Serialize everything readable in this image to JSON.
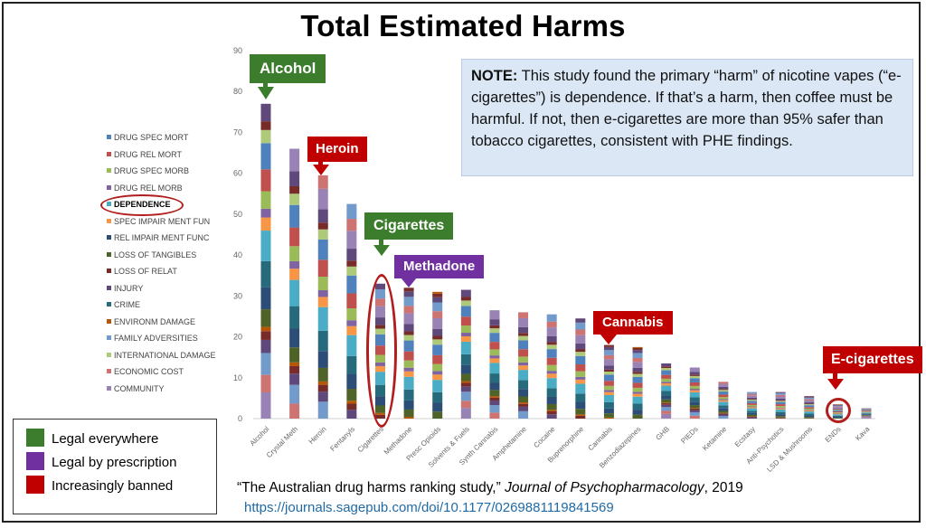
{
  "title": "Total Estimated Harms",
  "note": {
    "label": "NOTE:",
    "text": "This study found the primary “harm” of nicotine vapes (“e-cigarettes”) is dependence.  If that’s a harm, then coffee must be harmful.  If not, then e-cigarettes are more than 95% safer than tobacco cigarettes, consistent with PHE findings."
  },
  "citation": {
    "prefix": "“The Australian drug harms ranking study,” ",
    "journal": "Journal of Psychopharmacology",
    "suffix": ", 2019",
    "link": "https://journals.sagepub.com/doi/10.1177/0269881119841569"
  },
  "status_legend": [
    {
      "label": "Legal everywhere",
      "color": "#3b7d2c"
    },
    {
      "label": "Legal by prescription",
      "color": "#7030a0"
    },
    {
      "label": "Increasingly banned",
      "color": "#c00000"
    }
  ],
  "callouts": [
    {
      "label": "Alcohol",
      "color": "#3b7d2c"
    },
    {
      "label": "Heroin",
      "color": "#c00000"
    },
    {
      "label": "Cigarettes",
      "color": "#3b7d2c"
    },
    {
      "label": "Methadone",
      "color": "#7030a0"
    },
    {
      "label": "Cannabis",
      "color": "#c00000"
    },
    {
      "label": "E-cigarettes",
      "color": "#c00000"
    }
  ],
  "highlighted_legend_entry": "DEPENDENCE",
  "chart_data": {
    "type": "bar",
    "stacked": true,
    "ylim": [
      0,
      90
    ],
    "yticks": [
      0,
      10,
      20,
      30,
      40,
      50,
      60,
      70,
      80,
      90
    ],
    "grid": false,
    "legend_position": "left",
    "categories": [
      "Alcohol",
      "Crystal Meth",
      "Heroin",
      "Fentanyls",
      "Cigarettes",
      "Methadone",
      "Presc Opioids",
      "Solvents & Fuels",
      "Synth Cannabis",
      "Amphetamine",
      "Cocaine",
      "Buprenorphine",
      "Cannabis",
      "Benzodiazepines",
      "GHB",
      "PIEDs",
      "Ketamine",
      "Ecstasy",
      "Anti-Psychotics",
      "LSD & Mushrooms",
      "ENDs",
      "Kava"
    ],
    "totals": [
      77,
      66,
      59.5,
      52.5,
      33,
      32,
      31,
      31.5,
      26.5,
      26,
      25.5,
      24.5,
      18,
      17.5,
      13.5,
      12.5,
      9,
      6.5,
      6.5,
      5.5,
      3.5,
      2.5
    ],
    "series": [
      {
        "name": "DRUG SPEC MORT",
        "color": "#4f81bd"
      },
      {
        "name": "DRUG REL MORT",
        "color": "#c0504d"
      },
      {
        "name": "DRUG SPEC MORB",
        "color": "#9bbb59"
      },
      {
        "name": "DRUG REL MORB",
        "color": "#8064a2"
      },
      {
        "name": "DEPENDENCE",
        "color": "#4bacc6"
      },
      {
        "name": "SPEC IMPAIR MENT FUN",
        "color": "#f79646"
      },
      {
        "name": "REL IMPAIR MENT FUNC",
        "color": "#2c4d75"
      },
      {
        "name": "LOSS OF TANGIBLES",
        "color": "#4f6228"
      },
      {
        "name": "LOSS OF RELAT",
        "color": "#772c2a"
      },
      {
        "name": "INJURY",
        "color": "#5f497a"
      },
      {
        "name": "CRIME",
        "color": "#276a7c"
      },
      {
        "name": "ENVIRONM DAMAGE",
        "color": "#b65708"
      },
      {
        "name": "FAMILY ADVERSITIES",
        "color": "#729aca"
      },
      {
        "name": "INTERNATIONAL DAMAGE",
        "color": "#afc97a"
      },
      {
        "name": "ECONOMIC COST",
        "color": "#cd7371"
      },
      {
        "name": "COMMUNITY",
        "color": "#9983b5"
      }
    ]
  }
}
